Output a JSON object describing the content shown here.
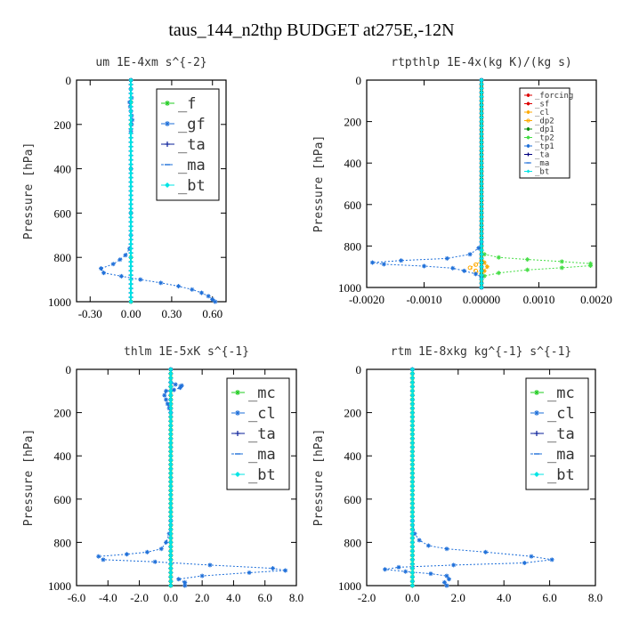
{
  "figure": {
    "title": "taus_144_n2thp  BUDGET at275E,-12N"
  },
  "colors": {
    "green": "#22cc22",
    "blue": "#1e6fd9",
    "darkblue": "#0a1f99",
    "cyan": "#00e5e5",
    "red": "#dd0000",
    "orange": "#ffaa00",
    "darkgreen": "#0a8a0a",
    "lightgreen": "#44dd44",
    "navy": "#000080"
  },
  "chart_data": [
    {
      "type": "line",
      "title": "um   1E-4xm  s^{-2}",
      "ylabel": "Pressure [hPa]",
      "xlim": [
        -0.4,
        0.7
      ],
      "ylim": [
        0,
        1000
      ],
      "y_inverted": true,
      "xticks": [
        -0.3,
        0.0,
        0.3,
        0.6
      ],
      "xtick_labels": [
        "-0.30",
        "0.00",
        "0.30",
        "0.60"
      ],
      "yticks": [
        0,
        200,
        400,
        600,
        800,
        1000
      ],
      "legend": {
        "position": "top-right",
        "size": "large"
      },
      "series": [
        {
          "name": "_f",
          "color": "green",
          "marker": "star",
          "points": [
            [
              0,
              0
            ],
            [
              0,
              100
            ],
            [
              0,
              200
            ],
            [
              0,
              400
            ],
            [
              0,
              600
            ],
            [
              0,
              800
            ],
            [
              0,
              1000
            ]
          ]
        },
        {
          "name": "_gf",
          "color": "blue",
          "marker": "star",
          "points": [
            [
              0.0,
              0
            ],
            [
              0.0,
              40
            ],
            [
              0.005,
              80
            ],
            [
              -0.01,
              100
            ],
            [
              -0.005,
              120
            ],
            [
              0.0,
              140
            ],
            [
              0.005,
              160
            ],
            [
              0.01,
              180
            ],
            [
              0.005,
              200
            ],
            [
              0.0,
              230
            ],
            [
              0.0,
              400
            ],
            [
              0.0,
              600
            ],
            [
              0.0,
              700
            ],
            [
              -0.01,
              760
            ],
            [
              -0.04,
              790
            ],
            [
              -0.08,
              810
            ],
            [
              -0.13,
              830
            ],
            [
              -0.22,
              850
            ],
            [
              -0.2,
              870
            ],
            [
              -0.07,
              885
            ],
            [
              0.07,
              900
            ],
            [
              0.22,
              915
            ],
            [
              0.35,
              930
            ],
            [
              0.45,
              945
            ],
            [
              0.52,
              960
            ],
            [
              0.57,
              975
            ],
            [
              0.6,
              990
            ],
            [
              0.62,
              1000
            ]
          ]
        },
        {
          "name": "_ta",
          "color": "darkblue",
          "marker": "plus",
          "points": [
            [
              0,
              0
            ],
            [
              0,
              1000
            ]
          ]
        },
        {
          "name": "_ma",
          "color": "blue",
          "marker": "dash",
          "points": [
            [
              0,
              0
            ],
            [
              0,
              1000
            ]
          ]
        },
        {
          "name": "_bt",
          "color": "cyan",
          "marker": "diamond",
          "points": [
            [
              0,
              0
            ],
            [
              0,
              1000
            ]
          ]
        }
      ]
    },
    {
      "type": "line",
      "title": "rtpthlp   1E-4x(kg K)/(kg s)",
      "ylabel": "Pressure [hPa]",
      "xlim": [
        -0.002,
        0.002
      ],
      "ylim": [
        0,
        1000
      ],
      "y_inverted": true,
      "xticks": [
        -0.002,
        -0.001,
        0.0,
        0.001,
        0.002
      ],
      "xtick_labels": [
        "-0.0020",
        "-0.0010",
        "0.00000",
        "0.0010",
        "0.0020"
      ],
      "yticks": [
        0,
        200,
        400,
        600,
        800,
        1000
      ],
      "legend": {
        "position": "top-right",
        "size": "small"
      },
      "series": [
        {
          "name": "_forcing",
          "color": "red",
          "marker": "star",
          "points": [
            [
              0,
              0
            ],
            [
              0,
              1000
            ]
          ]
        },
        {
          "name": "_sf",
          "color": "red",
          "marker": "star",
          "points": [
            [
              0,
              0
            ],
            [
              0,
              1000
            ]
          ]
        },
        {
          "name": "_cl",
          "color": "orange",
          "marker": "star",
          "points": [
            [
              0,
              860
            ],
            [
              5e-05,
              880
            ],
            [
              0.0001,
              900
            ],
            [
              5e-05,
              920
            ],
            [
              0,
              935
            ]
          ]
        },
        {
          "name": "_dp2",
          "color": "orange",
          "marker": "circle",
          "points": [
            [
              0,
              870
            ],
            [
              -0.0001,
              890
            ],
            [
              -0.0002,
              905
            ],
            [
              -0.0001,
              920
            ],
            [
              0,
              935
            ]
          ]
        },
        {
          "name": "_dp1",
          "color": "darkgreen",
          "marker": "star",
          "points": [
            [
              0,
              0
            ],
            [
              0,
              1000
            ]
          ]
        },
        {
          "name": "_tp2",
          "color": "lightgreen",
          "marker": "star",
          "points": [
            [
              0,
              0
            ],
            [
              0,
              820
            ],
            [
              5e-05,
              840
            ],
            [
              0.0003,
              855
            ],
            [
              0.0008,
              865
            ],
            [
              0.0014,
              875
            ],
            [
              0.0019,
              885
            ],
            [
              0.0019,
              895
            ],
            [
              0.0014,
              905
            ],
            [
              0.0008,
              915
            ],
            [
              0.0003,
              930
            ],
            [
              5e-05,
              945
            ],
            [
              0,
              960
            ],
            [
              0,
              1000
            ]
          ]
        },
        {
          "name": "_tp1",
          "color": "blue",
          "marker": "star",
          "points": [
            [
              0,
              0
            ],
            [
              0,
              780
            ],
            [
              -5e-05,
              810
            ],
            [
              -0.0002,
              840
            ],
            [
              -0.0006,
              860
            ],
            [
              -0.0014,
              870
            ],
            [
              -0.0019,
              880
            ],
            [
              -0.0017,
              888
            ],
            [
              -0.001,
              897
            ],
            [
              -0.0005,
              907
            ],
            [
              -0.0003,
              920
            ],
            [
              -0.0001,
              935
            ],
            [
              0,
              950
            ],
            [
              0,
              1000
            ]
          ]
        },
        {
          "name": "_ta",
          "color": "navy",
          "marker": "plus",
          "points": [
            [
              0,
              0
            ],
            [
              0,
              1000
            ]
          ]
        },
        {
          "name": "_ma",
          "color": "blue",
          "marker": "dash",
          "points": [
            [
              0,
              0
            ],
            [
              0,
              1000
            ]
          ]
        },
        {
          "name": "_bt",
          "color": "cyan",
          "marker": "diamond",
          "points": [
            [
              0,
              0
            ],
            [
              0,
              1000
            ]
          ]
        }
      ]
    },
    {
      "type": "line",
      "title": "thlm   1E-5xK  s^{-1}",
      "ylabel": "Pressure [hPa]",
      "xlim": [
        -6.0,
        8.0
      ],
      "ylim": [
        0,
        1000
      ],
      "y_inverted": true,
      "xticks": [
        -6,
        -4,
        -2,
        0,
        2,
        4,
        6,
        8
      ],
      "xtick_labels": [
        "-6.0",
        "-4.0",
        "-2.0",
        "0.0",
        "2.0",
        "4.0",
        "6.0",
        "8.0"
      ],
      "yticks": [
        0,
        200,
        400,
        600,
        800,
        1000
      ],
      "legend": {
        "position": "top-right",
        "size": "large"
      },
      "series": [
        {
          "name": "_mc",
          "color": "green",
          "marker": "star",
          "points": [
            [
              0,
              0
            ],
            [
              0,
              1000
            ]
          ]
        },
        {
          "name": "_cl",
          "color": "blue",
          "marker": "star",
          "points": [
            [
              0,
              0
            ],
            [
              0,
              60
            ],
            [
              0.3,
              70
            ],
            [
              0.7,
              75
            ],
            [
              0.6,
              85
            ],
            [
              0.2,
              95
            ],
            [
              -0.3,
              100
            ],
            [
              -0.4,
              120
            ],
            [
              -0.3,
              140
            ],
            [
              -0.2,
              160
            ],
            [
              -0.1,
              180
            ],
            [
              0,
              200
            ],
            [
              0,
              700
            ],
            [
              -0.1,
              760
            ],
            [
              -0.3,
              800
            ],
            [
              -0.6,
              830
            ],
            [
              -1.5,
              845
            ],
            [
              -2.8,
              855
            ],
            [
              -4.6,
              865
            ],
            [
              -4.3,
              880
            ],
            [
              -1.0,
              890
            ],
            [
              2.5,
              905
            ],
            [
              6.5,
              920
            ],
            [
              7.3,
              930
            ],
            [
              5.0,
              940
            ],
            [
              2.0,
              955
            ],
            [
              0.5,
              970
            ],
            [
              0.9,
              985
            ],
            [
              0.9,
              1000
            ]
          ]
        },
        {
          "name": "_ta",
          "color": "darkblue",
          "marker": "plus",
          "points": [
            [
              0,
              0
            ],
            [
              0,
              1000
            ]
          ]
        },
        {
          "name": "_ma",
          "color": "blue",
          "marker": "dash",
          "points": [
            [
              0,
              0
            ],
            [
              0,
              1000
            ]
          ]
        },
        {
          "name": "_bt",
          "color": "cyan",
          "marker": "diamond",
          "points": [
            [
              0,
              0
            ],
            [
              0,
              1000
            ]
          ]
        }
      ]
    },
    {
      "type": "line",
      "title": "rtm   1E-8xkg  kg^{-1}  s^{-1}",
      "ylabel": "Pressure [hPa]",
      "xlim": [
        -2.0,
        8.0
      ],
      "ylim": [
        0,
        1000
      ],
      "y_inverted": true,
      "xticks": [
        -2,
        0,
        2,
        4,
        6,
        8
      ],
      "xtick_labels": [
        "-2.0",
        "0.0",
        "2.0",
        "4.0",
        "6.0",
        "8.0"
      ],
      "yticks": [
        0,
        200,
        400,
        600,
        800,
        1000
      ],
      "legend": {
        "position": "top-right",
        "size": "large"
      },
      "series": [
        {
          "name": "_mc",
          "color": "green",
          "marker": "star",
          "points": [
            [
              0,
              0
            ],
            [
              0,
              1000
            ]
          ]
        },
        {
          "name": "_cl",
          "color": "blue",
          "marker": "star",
          "points": [
            [
              0,
              0
            ],
            [
              0,
              700
            ],
            [
              0.1,
              760
            ],
            [
              0.3,
              790
            ],
            [
              0.7,
              815
            ],
            [
              1.5,
              830
            ],
            [
              3.2,
              845
            ],
            [
              5.2,
              865
            ],
            [
              6.1,
              880
            ],
            [
              4.9,
              895
            ],
            [
              1.8,
              905
            ],
            [
              -0.6,
              915
            ],
            [
              -1.2,
              925
            ],
            [
              -0.3,
              935
            ],
            [
              0.8,
              945
            ],
            [
              1.5,
              955
            ],
            [
              1.6,
              970
            ],
            [
              1.4,
              985
            ],
            [
              1.5,
              1000
            ]
          ]
        },
        {
          "name": "_ta",
          "color": "darkblue",
          "marker": "plus",
          "points": [
            [
              0,
              0
            ],
            [
              0,
              1000
            ]
          ]
        },
        {
          "name": "_ma",
          "color": "blue",
          "marker": "dash",
          "points": [
            [
              0,
              0
            ],
            [
              0,
              1000
            ]
          ]
        },
        {
          "name": "_bt",
          "color": "cyan",
          "marker": "diamond",
          "points": [
            [
              0,
              0
            ],
            [
              0,
              1000
            ]
          ]
        }
      ]
    }
  ]
}
